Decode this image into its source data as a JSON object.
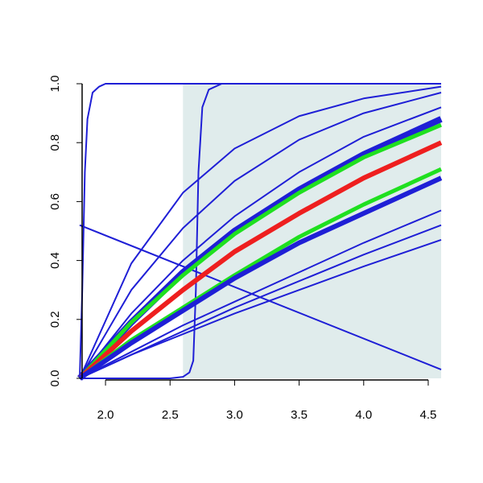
{
  "chart_data": {
    "type": "line",
    "xlim": [
      1.8,
      4.6
    ],
    "ylim": [
      0,
      1
    ],
    "xticks": [
      {
        "value": 2,
        "label": "2.0"
      },
      2.5,
      {
        "value": 3,
        "label": "3.0"
      },
      3.5,
      {
        "value": 4,
        "label": "4.0"
      },
      4.5
    ],
    "yticks": [
      {
        "value": 0,
        "label": "0.0"
      },
      0.2,
      0.4,
      0.6,
      0.8,
      {
        "value": 1,
        "label": "1.0"
      }
    ],
    "shaded_region": {
      "x": [
        2.6,
        4.6
      ],
      "color": "#e0ecec"
    },
    "series": [
      {
        "color": "#1f1fd6",
        "line_width": 2,
        "x": [
          1.8,
          1.82,
          1.84,
          1.86,
          1.9,
          1.95,
          2.0,
          4.6
        ],
        "values": [
          0,
          0.3,
          0.7,
          0.88,
          0.97,
          0.99,
          1,
          1
        ]
      },
      {
        "color": "#1f1fd6",
        "line_width": 2,
        "x": [
          1.8,
          2.5,
          2.6,
          2.65,
          2.68,
          2.7,
          2.72,
          2.75,
          2.8,
          2.9,
          4.6
        ],
        "values": [
          0,
          0,
          0.005,
          0.02,
          0.06,
          0.3,
          0.7,
          0.92,
          0.98,
          1,
          1
        ]
      },
      {
        "color": "#1f1fd6",
        "line_width": 2,
        "x": [
          1.8,
          4.6
        ],
        "values": [
          0.52,
          0.03
        ]
      },
      {
        "color": "#1f1fd6",
        "line_width": 2,
        "x": [
          1.8,
          2.2,
          2.6,
          3.0,
          3.5,
          4.0,
          4.6
        ],
        "values": [
          0,
          0.39,
          0.63,
          0.78,
          0.89,
          0.95,
          0.99
        ]
      },
      {
        "color": "#1f1fd6",
        "line_width": 2,
        "x": [
          1.8,
          2.2,
          2.6,
          3.0,
          3.5,
          4.0,
          4.6
        ],
        "values": [
          0,
          0.3,
          0.51,
          0.67,
          0.81,
          0.9,
          0.97
        ]
      },
      {
        "color": "#1f1fd6",
        "line_width": 2,
        "x": [
          1.8,
          2.2,
          2.6,
          3.0,
          3.5,
          4.0,
          4.6
        ],
        "values": [
          0,
          0.22,
          0.4,
          0.55,
          0.7,
          0.82,
          0.92
        ]
      },
      {
        "color": "#1f1fd6",
        "line_width": 8,
        "x": [
          1.8,
          2.2,
          2.6,
          3.0,
          3.5,
          4.0,
          4.6
        ],
        "values": [
          0,
          0.19,
          0.36,
          0.5,
          0.64,
          0.76,
          0.88
        ]
      },
      {
        "color": "#1fe01f",
        "line_width": 5,
        "x": [
          1.8,
          2.2,
          2.6,
          3.0,
          3.5,
          4.0,
          4.6
        ],
        "values": [
          0,
          0.19,
          0.35,
          0.49,
          0.63,
          0.75,
          0.86
        ]
      },
      {
        "color": "#ee1f1f",
        "line_width": 6,
        "x": [
          1.8,
          2.2,
          2.6,
          3.0,
          3.5,
          4.0,
          4.6
        ],
        "values": [
          0,
          0.16,
          0.3,
          0.43,
          0.56,
          0.68,
          0.8
        ]
      },
      {
        "color": "#1fe01f",
        "line_width": 5,
        "x": [
          1.8,
          2.2,
          2.6,
          3.0,
          3.5,
          4.0,
          4.6
        ],
        "values": [
          0,
          0.13,
          0.24,
          0.35,
          0.48,
          0.59,
          0.71
        ]
      },
      {
        "color": "#1f1fd6",
        "line_width": 6,
        "x": [
          1.8,
          2.2,
          2.6,
          3.0,
          3.5,
          4.0,
          4.6
        ],
        "values": [
          0,
          0.12,
          0.23,
          0.34,
          0.46,
          0.56,
          0.68
        ]
      },
      {
        "color": "#1f1fd6",
        "line_width": 2,
        "x": [
          1.8,
          2.2,
          2.6,
          3.0,
          3.5,
          4.0,
          4.6
        ],
        "values": [
          0,
          0.09,
          0.18,
          0.26,
          0.36,
          0.46,
          0.57
        ]
      },
      {
        "color": "#1f1fd6",
        "line_width": 2,
        "x": [
          1.8,
          2.2,
          2.6,
          3.0,
          3.5,
          4.0,
          4.6
        ],
        "values": [
          0,
          0.08,
          0.16,
          0.24,
          0.33,
          0.42,
          0.52
        ]
      },
      {
        "color": "#1f1fd6",
        "line_width": 2,
        "x": [
          1.8,
          2.2,
          2.6,
          3.0,
          3.5,
          4.0,
          4.6
        ],
        "values": [
          0,
          0.08,
          0.15,
          0.22,
          0.3,
          0.38,
          0.47
        ]
      }
    ]
  }
}
